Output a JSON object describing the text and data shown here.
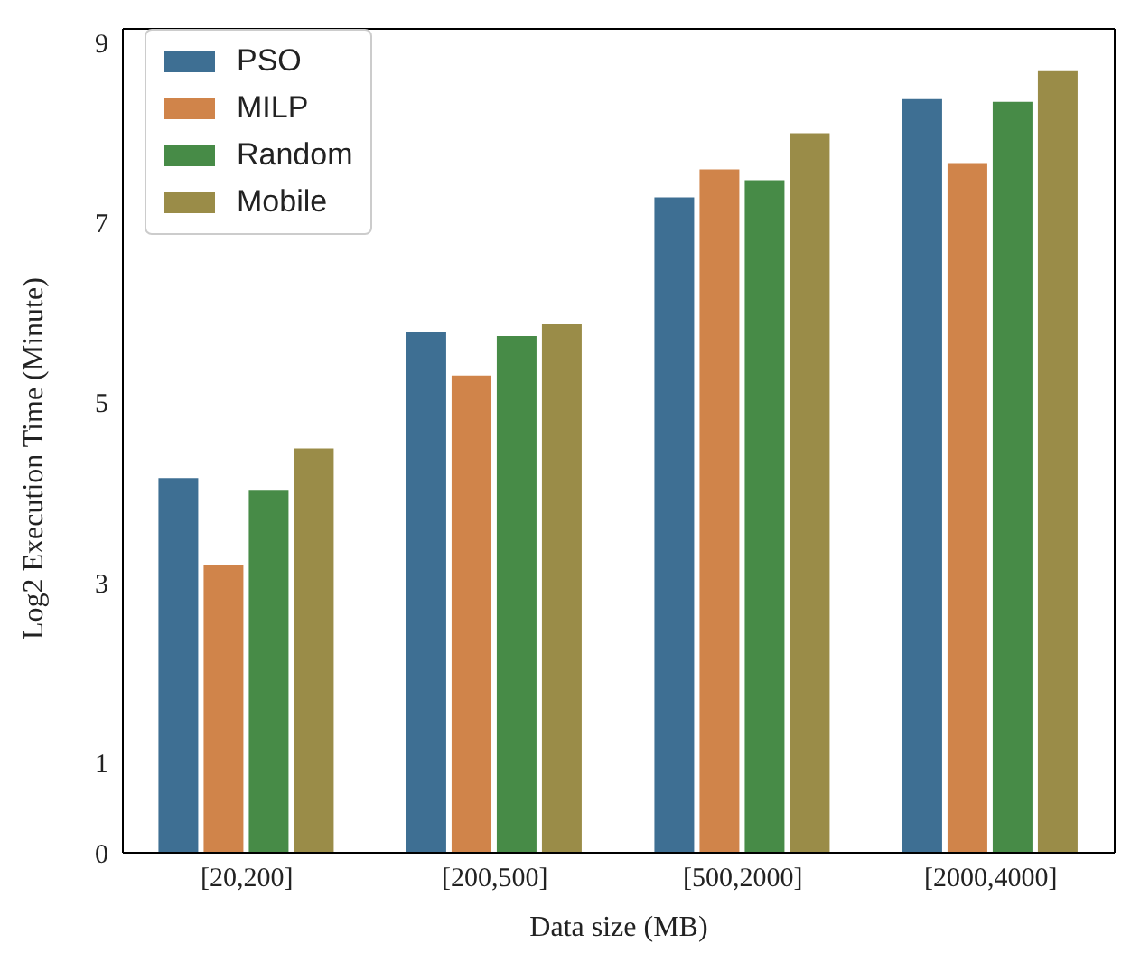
{
  "chart_data": {
    "type": "bar",
    "xlabel": "Data size (MB)",
    "ylabel": "Log2 Execution Time (Minute)",
    "categories": [
      "[20,200]",
      "[200,500]",
      "[500,2000]",
      "[2000,4000]"
    ],
    "series": [
      {
        "name": "PSO",
        "color": "#3e6f93",
        "values": [
          4.17,
          5.79,
          7.29,
          8.38
        ]
      },
      {
        "name": "MILP",
        "color": "#d0844a",
        "values": [
          3.21,
          5.31,
          7.6,
          7.67
        ]
      },
      {
        "name": "Random",
        "color": "#478b47",
        "values": [
          4.04,
          5.75,
          7.48,
          8.35
        ]
      },
      {
        "name": "Mobile",
        "color": "#9a8c48",
        "values": [
          4.5,
          5.88,
          8.0,
          8.69
        ]
      }
    ],
    "ylim": [
      0,
      9.15
    ],
    "yticks": [
      0,
      1,
      3,
      5,
      7,
      9
    ],
    "grid": false,
    "legend": "top left"
  }
}
